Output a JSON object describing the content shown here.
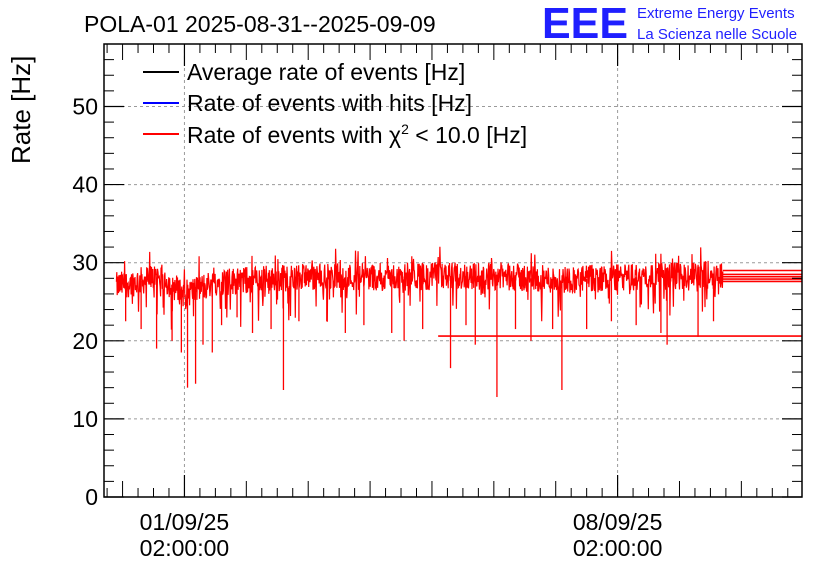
{
  "chart_data": {
    "type": "line",
    "title": "POLA-01 2025-08-31--2025-09-09",
    "ylabel": "Rate [Hz]",
    "xlabel": "",
    "ylim": [
      0,
      58
    ],
    "yticks": [
      0,
      10,
      20,
      30,
      40,
      50
    ],
    "xlim_days": [
      -1.3,
      9.98
    ],
    "xticks": [
      {
        "day": 0,
        "line1": "01/09/25",
        "line2": "02:00:00"
      },
      {
        "day": 7,
        "line1": "08/09/25",
        "line2": "02:00:00"
      }
    ],
    "grid": true,
    "legend_position": "top-left",
    "series": [
      {
        "name": "Average rate of events [Hz]",
        "color": "#000000"
      },
      {
        "name": "Rate of events with hits [Hz]",
        "color": "#0000ff"
      },
      {
        "name": "Rate of events with χ2 < 10.0 [Hz]",
        "color": "#ff0000",
        "data_start_day": -1.1,
        "data_end_day": 8.7,
        "baseline_profile": [
          {
            "day": -1.1,
            "rate": 27.0
          },
          {
            "day": -0.4,
            "rate": 28.2
          },
          {
            "day": 0.0,
            "rate": 26.0
          },
          {
            "day": 0.5,
            "rate": 27.5
          },
          {
            "day": 1.5,
            "rate": 28.0
          },
          {
            "day": 3.0,
            "rate": 28.2
          },
          {
            "day": 5.0,
            "rate": 28.3
          },
          {
            "day": 6.0,
            "rate": 27.8
          },
          {
            "day": 8.7,
            "rate": 28.5
          }
        ],
        "dips": [
          {
            "day": -0.95,
            "rate": 22.5
          },
          {
            "day": -0.7,
            "rate": 21.5
          },
          {
            "day": -0.45,
            "rate": 19.0
          },
          {
            "day": -0.2,
            "rate": 20.0
          },
          {
            "day": -0.05,
            "rate": 18.5
          },
          {
            "day": 0.05,
            "rate": 14.0
          },
          {
            "day": 0.18,
            "rate": 14.5
          },
          {
            "day": 0.3,
            "rate": 19.5
          },
          {
            "day": 0.45,
            "rate": 18.5
          },
          {
            "day": 0.6,
            "rate": 22.0
          },
          {
            "day": 0.85,
            "rate": 23.0
          },
          {
            "day": 1.1,
            "rate": 21.0
          },
          {
            "day": 1.4,
            "rate": 21.5
          },
          {
            "day": 1.6,
            "rate": 13.7
          },
          {
            "day": 1.85,
            "rate": 22.5
          },
          {
            "day": 2.3,
            "rate": 22.5
          },
          {
            "day": 2.6,
            "rate": 21.0
          },
          {
            "day": 2.9,
            "rate": 22.0
          },
          {
            "day": 3.35,
            "rate": 21.0
          },
          {
            "day": 3.55,
            "rate": 20.0
          },
          {
            "day": 3.85,
            "rate": 21.5
          },
          {
            "day": 4.3,
            "rate": 16.5
          },
          {
            "day": 4.55,
            "rate": 22.0
          },
          {
            "day": 4.7,
            "rate": 19.5
          },
          {
            "day": 5.05,
            "rate": 12.8
          },
          {
            "day": 5.35,
            "rate": 21.5
          },
          {
            "day": 5.6,
            "rate": 20.0
          },
          {
            "day": 5.95,
            "rate": 21.5
          },
          {
            "day": 6.1,
            "rate": 13.7
          },
          {
            "day": 6.5,
            "rate": 21.5
          },
          {
            "day": 6.9,
            "rate": 22.5
          },
          {
            "day": 7.3,
            "rate": 22.0
          },
          {
            "day": 7.7,
            "rate": 21.0
          },
          {
            "day": 7.8,
            "rate": 19.5
          },
          {
            "day": 8.3,
            "rate": 20.5
          },
          {
            "day": 8.55,
            "rate": 22.5
          }
        ],
        "flat_segments": [
          {
            "from_day": 4.1,
            "to_day": 9.98,
            "rate": 20.6
          },
          {
            "from_day": 8.7,
            "to_day": 9.98,
            "rate": 27.6
          },
          {
            "from_day": 8.7,
            "to_day": 9.98,
            "rate": 27.9
          },
          {
            "from_day": 8.7,
            "to_day": 9.98,
            "rate": 28.2
          },
          {
            "from_day": 8.7,
            "to_day": 9.98,
            "rate": 28.5
          },
          {
            "from_day": 8.7,
            "to_day": 9.98,
            "rate": 29.0
          }
        ]
      }
    ]
  },
  "logo": {
    "acronym": "EEE",
    "line1": "Extreme Energy Events",
    "line2": "La Scienza nelle Scuole"
  }
}
